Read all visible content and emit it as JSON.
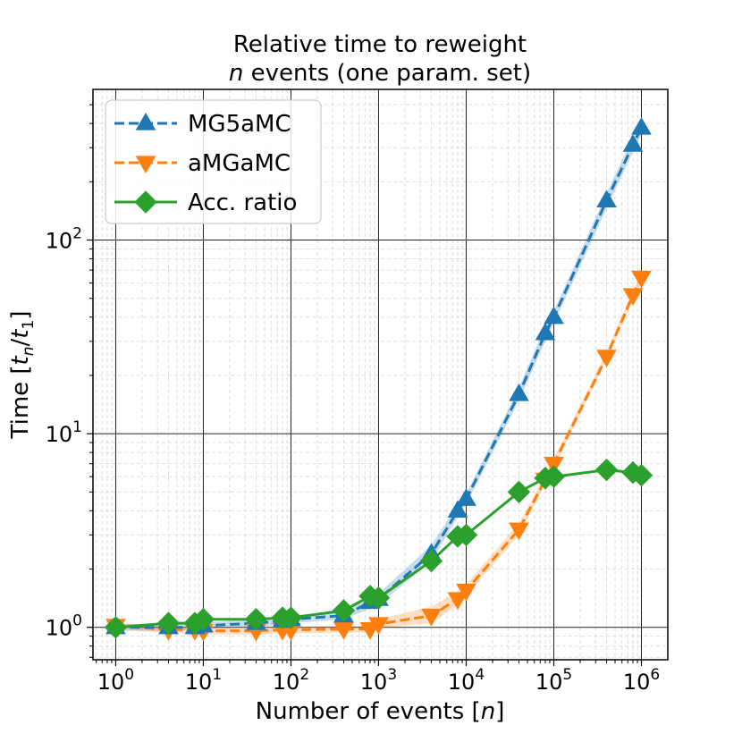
{
  "chart_data": {
    "type": "line",
    "title_line1": "Relative time to reweight",
    "title_line2_var": "n",
    "title_line2_rest": " events (one param. set)",
    "xlabel_main": "Number of events [",
    "xlabel_var": "n",
    "xlabel_end": "]",
    "ylabel_main": "Time [",
    "ylabel_var_t": "t",
    "ylabel_sub_n": "n",
    "ylabel_slash": "/",
    "ylabel_sub_1": "1",
    "ylabel_end": "]",
    "xscale": "log",
    "yscale": "log",
    "xlim": [
      0.55,
      2000000
    ],
    "ylim": [
      0.68,
      600
    ],
    "grid": true,
    "legend_position": "top-left",
    "x_tick_base": "10",
    "x_ticks": [
      {
        "value": 1,
        "exp": "0"
      },
      {
        "value": 10,
        "exp": "1"
      },
      {
        "value": 100,
        "exp": "2"
      },
      {
        "value": 1000,
        "exp": "3"
      },
      {
        "value": 10000,
        "exp": "4"
      },
      {
        "value": 100000,
        "exp": "5"
      },
      {
        "value": 1000000,
        "exp": "6"
      }
    ],
    "y_ticks": [
      {
        "value": 1,
        "exp": "0"
      },
      {
        "value": 10,
        "exp": "1"
      },
      {
        "value": 100,
        "exp": "2"
      }
    ],
    "series": [
      {
        "name": "MG5aMC",
        "color": "#1f77b4",
        "linestyle": "dashed",
        "marker": "triangle-up",
        "x": [
          1,
          4,
          8,
          10,
          40,
          80,
          100,
          400,
          800,
          1000,
          4000,
          8000,
          10000,
          40000,
          80000,
          100000,
          400000,
          800000,
          1000000
        ],
        "y": [
          1.0,
          1.0,
          1.0,
          1.02,
          1.05,
          1.08,
          1.1,
          1.15,
          1.35,
          1.4,
          2.4,
          4.0,
          4.6,
          16,
          33,
          40,
          160,
          310,
          380
        ],
        "band_low": [
          0.96,
          0.96,
          0.97,
          0.98,
          1.0,
          1.03,
          1.05,
          1.1,
          1.25,
          1.3,
          2.2,
          3.7,
          4.3,
          14.8,
          30,
          37,
          145,
          285,
          350
        ],
        "band_high": [
          1.04,
          1.04,
          1.04,
          1.06,
          1.1,
          1.13,
          1.15,
          1.22,
          1.45,
          1.5,
          2.65,
          4.3,
          4.9,
          17.3,
          36,
          43,
          175,
          340,
          410
        ]
      },
      {
        "name": "aMGaMC",
        "color": "#ff7f0e",
        "linestyle": "dashed",
        "marker": "triangle-down",
        "x": [
          1,
          4,
          8,
          10,
          40,
          80,
          100,
          400,
          800,
          1000,
          4000,
          8000,
          10000,
          40000,
          80000,
          100000,
          400000,
          800000,
          1000000
        ],
        "y": [
          1.02,
          0.97,
          0.97,
          0.96,
          0.96,
          0.97,
          0.97,
          0.98,
          0.98,
          1.04,
          1.15,
          1.4,
          1.55,
          3.2,
          5.8,
          7.0,
          25,
          52,
          64
        ],
        "band_low": [
          0.98,
          0.93,
          0.93,
          0.92,
          0.92,
          0.93,
          0.93,
          0.94,
          0.94,
          0.99,
          1.05,
          1.3,
          1.45,
          3.0,
          5.5,
          6.6,
          24,
          49,
          60
        ],
        "band_high": [
          1.06,
          1.01,
          1.01,
          1.0,
          1.0,
          1.01,
          1.01,
          1.02,
          1.03,
          1.1,
          1.28,
          1.52,
          1.67,
          3.45,
          6.1,
          7.4,
          26.5,
          55,
          68
        ]
      },
      {
        "name": "Acc. ratio",
        "color": "#2ca02c",
        "linestyle": "solid",
        "marker": "diamond",
        "x": [
          1,
          4,
          8,
          10,
          40,
          80,
          100,
          400,
          800,
          1000,
          4000,
          8000,
          10000,
          40000,
          80000,
          100000,
          400000,
          800000,
          1000000
        ],
        "y": [
          1.0,
          1.05,
          1.05,
          1.1,
          1.1,
          1.12,
          1.12,
          1.22,
          1.45,
          1.42,
          2.2,
          2.95,
          3.0,
          5.0,
          5.9,
          6.0,
          6.5,
          6.3,
          6.1
        ]
      }
    ]
  }
}
